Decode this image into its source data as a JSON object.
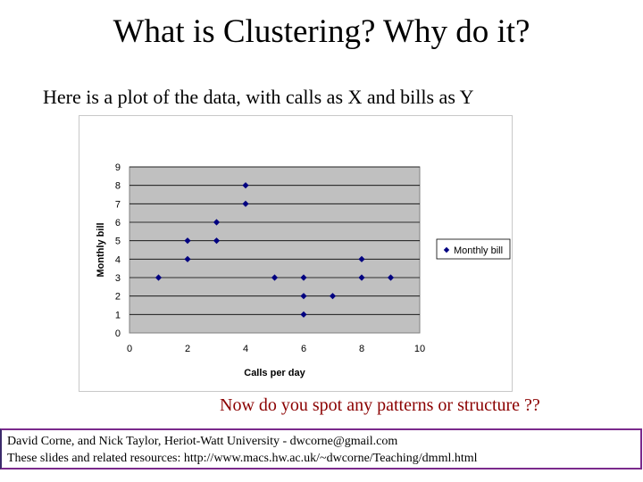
{
  "slide": {
    "title": "What is Clustering?  Why do it?",
    "intro": "Here is a plot of the data, with calls as X and bills as Y",
    "question": "Now do you spot any patterns or structure ??",
    "footer_line1": "David Corne, and Nick Taylor,  Heriot-Watt University  -  dwcorne@gmail.com",
    "footer_line2": "These slides and related resources:   http://www.macs.hw.ac.uk/~dwcorne/Teaching/dmml.html"
  },
  "colors": {
    "plot_background": "#c0c0c0",
    "marker": "#000080",
    "question_text": "#8b0000",
    "footer_border": "#7a2a8c"
  },
  "chart_data": {
    "type": "scatter",
    "title": "",
    "xlabel": "Calls per day",
    "ylabel": "Monthly bill",
    "xlim": [
      0,
      10
    ],
    "ylim": [
      0,
      9
    ],
    "x_ticks": [
      "0",
      "2",
      "4",
      "6",
      "8",
      "10"
    ],
    "y_ticks": [
      "0",
      "1",
      "2",
      "3",
      "4",
      "5",
      "6",
      "7",
      "8",
      "9"
    ],
    "grid": true,
    "legend_position": "right",
    "marker": "diamond",
    "series": [
      {
        "name": "Monthly bill",
        "points": [
          {
            "x": 1,
            "y": 3
          },
          {
            "x": 2,
            "y": 4
          },
          {
            "x": 2,
            "y": 5
          },
          {
            "x": 3,
            "y": 5
          },
          {
            "x": 3,
            "y": 6
          },
          {
            "x": 4,
            "y": 7
          },
          {
            "x": 4,
            "y": 8
          },
          {
            "x": 5,
            "y": 3
          },
          {
            "x": 6,
            "y": 1
          },
          {
            "x": 6,
            "y": 2
          },
          {
            "x": 6,
            "y": 3
          },
          {
            "x": 7,
            "y": 2
          },
          {
            "x": 8,
            "y": 3
          },
          {
            "x": 8,
            "y": 4
          },
          {
            "x": 9,
            "y": 3
          }
        ]
      }
    ]
  }
}
